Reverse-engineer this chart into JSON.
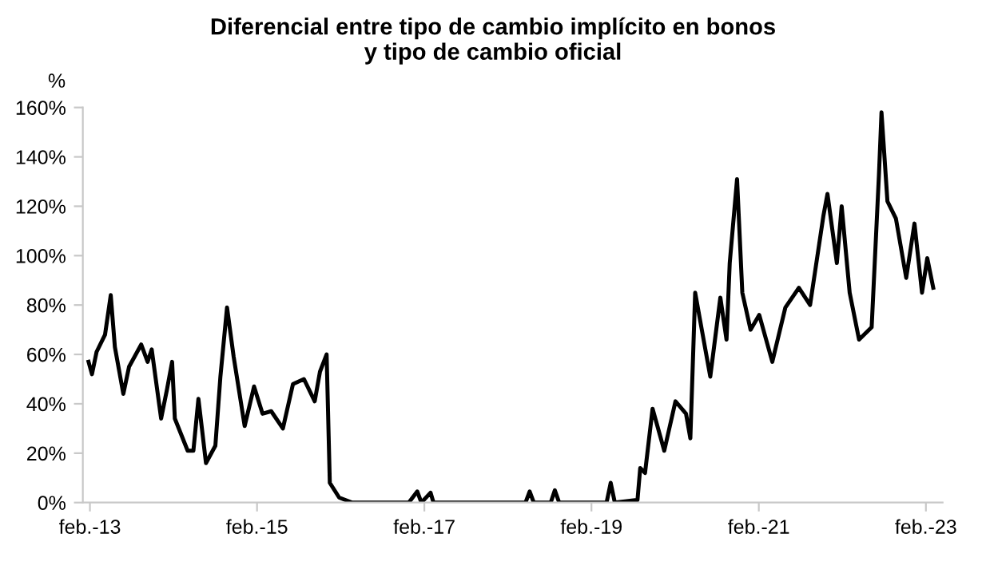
{
  "chart_data": {
    "type": "line",
    "title": "Diferencial entre tipo de cambio implícito en bonos\ny tipo de cambio oficial",
    "ylabel": "%",
    "x": [
      "2013-01-26",
      "2013-02-10",
      "2013-03-02",
      "2013-04-08",
      "2013-05-03",
      "2013-05-21",
      "2013-06-27",
      "2013-07-22",
      "2013-09-13",
      "2013-10-11",
      "2013-10-29",
      "2013-12-09",
      "2014-01-04",
      "2014-01-26",
      "2014-02-07",
      "2014-04-04",
      "2014-04-29",
      "2014-05-21",
      "2014-06-23",
      "2014-08-03",
      "2014-08-25",
      "2014-09-23",
      "2014-10-22",
      "2014-12-09",
      "2015-01-19",
      "2015-02-25",
      "2015-04-04",
      "2015-05-25",
      "2015-07-08",
      "2015-08-25",
      "2015-10-11",
      "2015-11-03",
      "2015-12-02",
      "2015-12-16",
      "2016-01-26",
      "2016-03-23",
      "2016-11-25",
      "2017-01-01",
      "2017-01-19",
      "2017-02-28",
      "2017-03-13",
      "2018-04-19",
      "2018-05-07",
      "2018-05-25",
      "2018-08-07",
      "2018-08-25",
      "2018-09-13",
      "2019-04-08",
      "2019-04-26",
      "2019-05-14",
      "2019-08-10",
      "2019-08-21",
      "2019-09-02",
      "2019-09-23",
      "2019-10-26",
      "2019-12-16",
      "2020-02-03",
      "2020-03-20",
      "2020-04-08",
      "2020-04-29",
      "2020-05-28",
      "2020-07-04",
      "2020-08-17",
      "2020-09-13",
      "2020-09-27",
      "2020-10-29",
      "2020-11-21",
      "2020-12-27",
      "2021-02-03",
      "2021-04-01",
      "2021-05-28",
      "2021-07-26",
      "2021-09-13",
      "2021-11-10",
      "2021-11-28",
      "2022-01-08",
      "2022-01-29",
      "2022-03-05",
      "2022-04-15",
      "2022-06-09",
      "2022-07-11",
      "2022-07-22",
      "2022-08-17",
      "2022-09-23",
      "2022-11-07",
      "2022-12-13",
      "2023-01-15",
      "2023-02-07",
      "2023-03-05"
    ],
    "series": [
      {
        "color": "#000000",
        "values": [
          57,
          52,
          61,
          68,
          84,
          63,
          44,
          55,
          64,
          57,
          62,
          34,
          46,
          57,
          34,
          21,
          21,
          42,
          16,
          23,
          51,
          79,
          59,
          31,
          47,
          36,
          37,
          30,
          48,
          50,
          41,
          53,
          60,
          8,
          2,
          0,
          0,
          4.5,
          0,
          4,
          0,
          0,
          4.5,
          0,
          0,
          5,
          0,
          0,
          8,
          0,
          1,
          1,
          14,
          12,
          38,
          21,
          41,
          36,
          26,
          85,
          70,
          51,
          83,
          66,
          97,
          131,
          85,
          70,
          76,
          57,
          79,
          87,
          80,
          116,
          125,
          97,
          120,
          85,
          66,
          71,
          133,
          158,
          122,
          115,
          91,
          113,
          85,
          99,
          87
        ]
      }
    ],
    "xlim": [
      "2013-01-01",
      "2023-04-15"
    ],
    "xticks": [
      {
        "value": "2013-02-01",
        "label": "feb.-13"
      },
      {
        "value": "2015-02-01",
        "label": "feb.-15"
      },
      {
        "value": "2017-02-01",
        "label": "feb.-17"
      },
      {
        "value": "2019-02-01",
        "label": "feb.-19"
      },
      {
        "value": "2021-02-01",
        "label": "feb.-21"
      },
      {
        "value": "2023-02-01",
        "label": "feb.-23"
      }
    ],
    "ylim": [
      0,
      160
    ],
    "yticks": [
      {
        "value": 0,
        "label": "0%"
      },
      {
        "value": 20,
        "label": "20%"
      },
      {
        "value": 40,
        "label": "40%"
      },
      {
        "value": 60,
        "label": "60%"
      },
      {
        "value": 80,
        "label": "80%"
      },
      {
        "value": 100,
        "label": "100%"
      },
      {
        "value": 120,
        "label": "120%"
      },
      {
        "value": 140,
        "label": "140%"
      },
      {
        "value": 160,
        "label": "160%"
      }
    ],
    "grid": false,
    "legend": false
  }
}
